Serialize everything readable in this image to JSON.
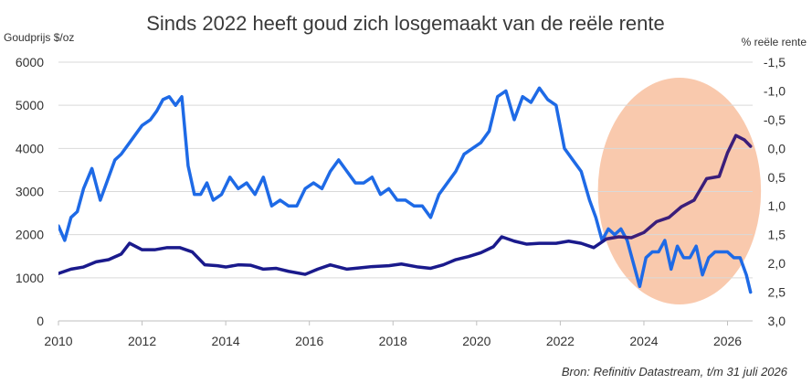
{
  "chart_data": {
    "type": "line",
    "title": "Sinds 2022 heeft goud zich losgemaakt van de reële rente",
    "ylabel_left": "Goudprijs $/oz",
    "ylabel_right": "% reële rente",
    "source": "Bron: Refinitiv Datastream, t/m 31 juli 2026",
    "xlim": [
      2010,
      2026.6
    ],
    "x_ticks": [
      "2010",
      "2012",
      "2014",
      "2016",
      "2018",
      "2020",
      "2022",
      "2024",
      "2026"
    ],
    "ylim_left": [
      0,
      6000
    ],
    "y_ticks_left": [
      "0",
      "1000",
      "2000",
      "3000",
      "4000",
      "5000",
      "6000"
    ],
    "ylim_right_inverted": [
      -1.5,
      3.0
    ],
    "y_ticks_right": [
      "-1,5",
      "-1,0",
      "-0,5",
      "0,0",
      "0,5",
      "1,0",
      "1,5",
      "2,0",
      "2,5",
      "3,0"
    ],
    "highlight": {
      "shape": "ellipse",
      "color": "#f9c9ad",
      "x_range": [
        2022.9,
        2026.8
      ]
    },
    "series": [
      {
        "name": "",
        "axis": "left",
        "color": "#1a1a8c",
        "color_after_2023": "#3b1e7a",
        "x": [
          2010.0,
          2010.3,
          2010.6,
          2010.9,
          2011.2,
          2011.5,
          2011.7,
          2012.0,
          2012.3,
          2012.6,
          2012.9,
          2013.2,
          2013.5,
          2013.8,
          2014.0,
          2014.3,
          2014.6,
          2014.9,
          2015.2,
          2015.5,
          2015.9,
          2016.2,
          2016.5,
          2016.9,
          2017.2,
          2017.5,
          2017.9,
          2018.2,
          2018.6,
          2018.9,
          2019.2,
          2019.5,
          2019.8,
          2020.1,
          2020.4,
          2020.6,
          2020.9,
          2021.2,
          2021.5,
          2021.9,
          2022.2,
          2022.5,
          2022.8,
          2023.1,
          2023.4,
          2023.7,
          2024.0,
          2024.3,
          2024.6,
          2024.9,
          2025.2,
          2025.5,
          2025.8,
          2026.0,
          2026.2,
          2026.4,
          2026.55
        ],
        "values": [
          1100,
          1200,
          1250,
          1370,
          1420,
          1550,
          1800,
          1650,
          1650,
          1700,
          1700,
          1600,
          1300,
          1280,
          1250,
          1300,
          1290,
          1200,
          1220,
          1150,
          1080,
          1200,
          1300,
          1200,
          1230,
          1260,
          1280,
          1320,
          1250,
          1220,
          1300,
          1420,
          1490,
          1580,
          1720,
          1950,
          1850,
          1780,
          1800,
          1800,
          1850,
          1800,
          1700,
          1900,
          1950,
          1930,
          2050,
          2300,
          2400,
          2650,
          2800,
          3300,
          3350,
          3900,
          4300,
          4200,
          4050
        ]
      },
      {
        "name": "",
        "axis": "right",
        "color": "#1e6ae6",
        "x": [
          2010.0,
          2010.15,
          2010.3,
          2010.45,
          2010.6,
          2010.8,
          2011.0,
          2011.2,
          2011.35,
          2011.5,
          2011.7,
          2011.9,
          2012.0,
          2012.2,
          2012.35,
          2012.5,
          2012.65,
          2012.8,
          2012.95,
          2013.1,
          2013.25,
          2013.4,
          2013.55,
          2013.7,
          2013.9,
          2014.1,
          2014.3,
          2014.5,
          2014.7,
          2014.9,
          2015.1,
          2015.3,
          2015.5,
          2015.7,
          2015.9,
          2016.1,
          2016.3,
          2016.5,
          2016.7,
          2016.9,
          2017.1,
          2017.3,
          2017.5,
          2017.7,
          2017.9,
          2018.1,
          2018.3,
          2018.5,
          2018.7,
          2018.9,
          2019.1,
          2019.3,
          2019.5,
          2019.7,
          2019.9,
          2020.1,
          2020.3,
          2020.5,
          2020.7,
          2020.9,
          2021.1,
          2021.3,
          2021.5,
          2021.7,
          2021.9,
          2022.1,
          2022.3,
          2022.5,
          2022.7,
          2022.85,
          2023.0,
          2023.15,
          2023.3,
          2023.45,
          2023.6,
          2023.75,
          2023.9,
          2024.05,
          2024.2,
          2024.35,
          2024.5,
          2024.65,
          2024.8,
          2024.95,
          2025.1,
          2025.25,
          2025.4,
          2025.55,
          2025.7,
          2025.85,
          2026.0,
          2026.15,
          2026.3,
          2026.45,
          2026.55
        ],
        "values": [
          1.35,
          1.6,
          1.2,
          1.1,
          0.7,
          0.35,
          0.9,
          0.5,
          0.2,
          0.1,
          -0.1,
          -0.3,
          -0.4,
          -0.5,
          -0.65,
          -0.85,
          -0.9,
          -0.75,
          -0.9,
          0.3,
          0.8,
          0.8,
          0.6,
          0.9,
          0.8,
          0.5,
          0.7,
          0.6,
          0.8,
          0.5,
          1.0,
          0.9,
          1.0,
          1.0,
          0.7,
          0.6,
          0.7,
          0.4,
          0.2,
          0.4,
          0.6,
          0.6,
          0.5,
          0.8,
          0.7,
          0.9,
          0.9,
          1.0,
          1.0,
          1.2,
          0.8,
          0.6,
          0.4,
          0.1,
          0.0,
          -0.1,
          -0.3,
          -0.9,
          -1.0,
          -0.5,
          -0.9,
          -0.8,
          -1.05,
          -0.85,
          -0.75,
          0.0,
          0.2,
          0.4,
          0.9,
          1.2,
          1.6,
          1.4,
          1.5,
          1.4,
          1.6,
          2.0,
          2.4,
          1.9,
          1.8,
          1.8,
          1.6,
          2.1,
          1.7,
          1.9,
          1.9,
          1.7,
          2.2,
          1.9,
          1.8,
          1.8,
          1.8,
          1.9,
          1.9,
          2.2,
          2.5
        ]
      }
    ]
  }
}
